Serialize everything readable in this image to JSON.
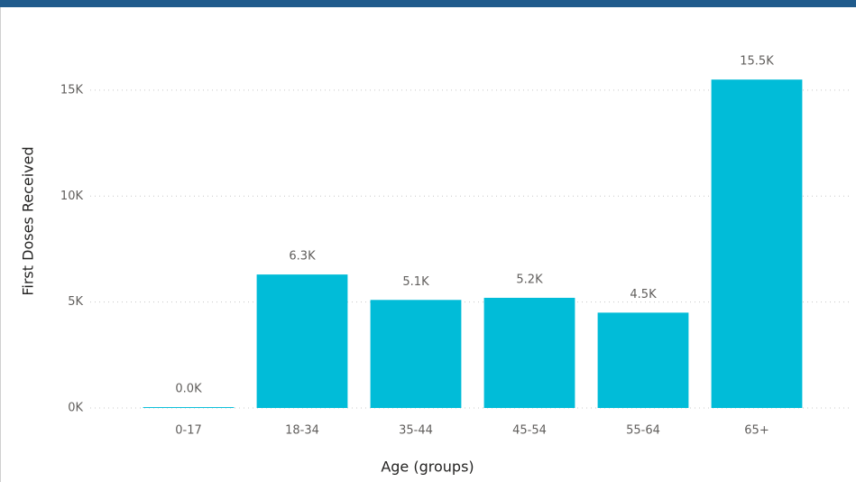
{
  "chart_data": {
    "type": "bar",
    "x_label": "Age (groups)",
    "y_label": "First Doses Received",
    "categories": [
      "0-17",
      "18-34",
      "35-44",
      "45-54",
      "55-64",
      "65+"
    ],
    "values": [
      40,
      6300,
      5100,
      5200,
      4500,
      15500
    ],
    "value_labels": [
      "0.0K",
      "6.3K",
      "5.1K",
      "5.2K",
      "4.5K",
      "15.5K"
    ],
    "color": "#01bcd8",
    "ylim": [
      0,
      16700
    ],
    "yticks": [
      {
        "value": 0,
        "label": "0K"
      },
      {
        "value": 5000,
        "label": "5K"
      },
      {
        "value": 10000,
        "label": "10K"
      },
      {
        "value": 15000,
        "label": "15K"
      }
    ],
    "grid": true
  }
}
